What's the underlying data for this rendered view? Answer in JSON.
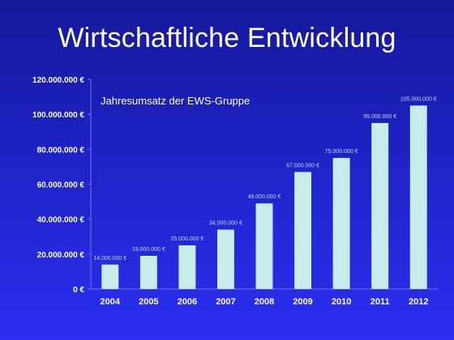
{
  "slide": {
    "title": "Wirtschaftliche Entwicklung"
  },
  "colors": {
    "background_top": "#16189a",
    "background_bottom": "#2a2ff0",
    "bar": "#c6ecec",
    "text": "#ffffff",
    "data_label": "#c9d2ff"
  },
  "chart_data": {
    "type": "bar",
    "title": "Jahresumsatz der EWS-Gruppe",
    "xlabel": "",
    "ylabel": "",
    "categories": [
      "2004",
      "2005",
      "2006",
      "2007",
      "2008",
      "2009",
      "2010",
      "2011",
      "2012"
    ],
    "values": [
      14000000,
      19000000,
      25000000,
      34000000,
      49000000,
      67000000,
      75000000,
      95000000,
      105000000
    ],
    "value_labels": [
      "14.000.000 €",
      "19.000.000 €",
      "25.000.000 €",
      "34.000.000 €",
      "49.000.000 €",
      "67.000.000 €",
      "75.000.000 €",
      "95.000.000 €",
      "105.000.000 €"
    ],
    "ylim": [
      0,
      120000000
    ],
    "yticks": [
      0,
      20000000,
      40000000,
      60000000,
      80000000,
      100000000,
      120000000
    ],
    "ytick_labels": [
      "0 €",
      "20.000.000 €",
      "40.000.000 €",
      "60.000.000 €",
      "80.000.000 €",
      "100.000.000 €",
      "120.000.000 €"
    ],
    "grid": false,
    "legend": "none"
  }
}
